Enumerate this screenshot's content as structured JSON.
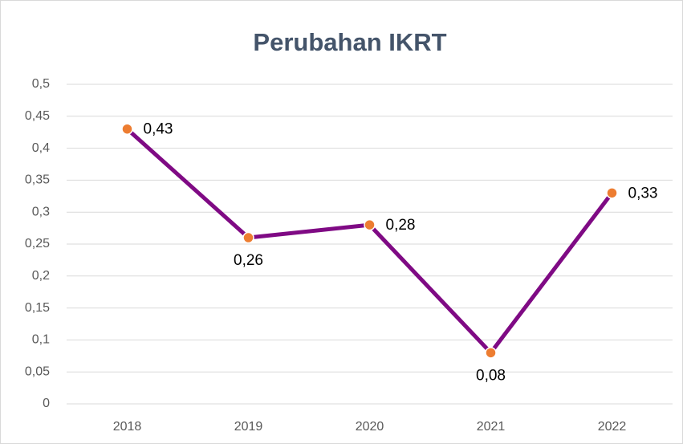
{
  "chart_data": {
    "type": "line",
    "title": "Perubahan IKRT",
    "categories": [
      "2018",
      "2019",
      "2020",
      "2021",
      "2022"
    ],
    "series": [
      {
        "name": "IKRT",
        "color": "#7f0a84",
        "marker_color": "#ed7d31",
        "values": [
          0.43,
          0.26,
          0.28,
          0.08,
          0.33
        ],
        "value_labels": [
          "0,43",
          "0,26",
          "0,28",
          "0,08",
          "0,33"
        ]
      }
    ],
    "ylim": [
      0,
      0.5
    ],
    "yticks": [
      0,
      {
        "value": 0.05,
        "label": "0,05"
      },
      {
        "value": 0.1,
        "label": "0,1"
      },
      {
        "value": 0.15,
        "label": "0,15"
      },
      {
        "value": 0.2,
        "label": "0,2"
      },
      {
        "value": 0.25,
        "label": "0,25"
      },
      {
        "value": 0.3,
        "label": "0,3"
      },
      {
        "value": 0.35,
        "label": "0,35"
      },
      {
        "value": 0.4,
        "label": "0,4"
      },
      {
        "value": 0.45,
        "label": "0,45"
      },
      {
        "value": 0.5,
        "label": "0,5"
      }
    ],
    "grid": true
  }
}
